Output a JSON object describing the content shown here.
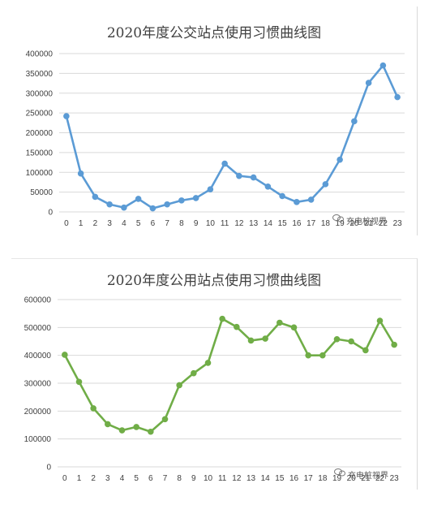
{
  "chart_data": [
    {
      "type": "line",
      "title": "2020年度公交站点使用习惯曲线图",
      "categories": [
        "0",
        "1",
        "2",
        "3",
        "4",
        "5",
        "6",
        "7",
        "8",
        "9",
        "10",
        "11",
        "12",
        "13",
        "14",
        "15",
        "16",
        "17",
        "18",
        "19",
        "20",
        "21",
        "22",
        "23"
      ],
      "values": [
        242000,
        97000,
        38000,
        19000,
        11000,
        33000,
        9000,
        19000,
        29000,
        35000,
        57000,
        122000,
        91000,
        87000,
        64000,
        40000,
        25000,
        31000,
        70000,
        132000,
        229000,
        326000,
        370000,
        290000
      ],
      "yticks": [
        "0",
        "50000",
        "100000",
        "150000",
        "200000",
        "250000",
        "300000",
        "350000",
        "400000"
      ],
      "ylim": [
        0,
        400000
      ],
      "color": "#5b9bd5",
      "grid": true,
      "watermark": "充电桩视界"
    },
    {
      "type": "line",
      "title": "2020年度公用站点使用习惯曲线图",
      "categories": [
        "0",
        "1",
        "2",
        "3",
        "4",
        "5",
        "6",
        "7",
        "8",
        "9",
        "10",
        "11",
        "12",
        "13",
        "14",
        "15",
        "16",
        "17",
        "18",
        "19",
        "20",
        "21",
        "22",
        "23"
      ],
      "values": [
        402000,
        305000,
        210000,
        153000,
        131000,
        143000,
        126000,
        171000,
        293000,
        336000,
        373000,
        531000,
        502000,
        453000,
        460000,
        517000,
        500000,
        400000,
        400000,
        458000,
        450000,
        418000,
        524000,
        438000
      ],
      "yticks": [
        "0",
        "100000",
        "200000",
        "300000",
        "400000",
        "500000",
        "600000"
      ],
      "ylim": [
        0,
        600000
      ],
      "color": "#70ad47",
      "grid": true,
      "watermark": "充电桩视界"
    }
  ]
}
